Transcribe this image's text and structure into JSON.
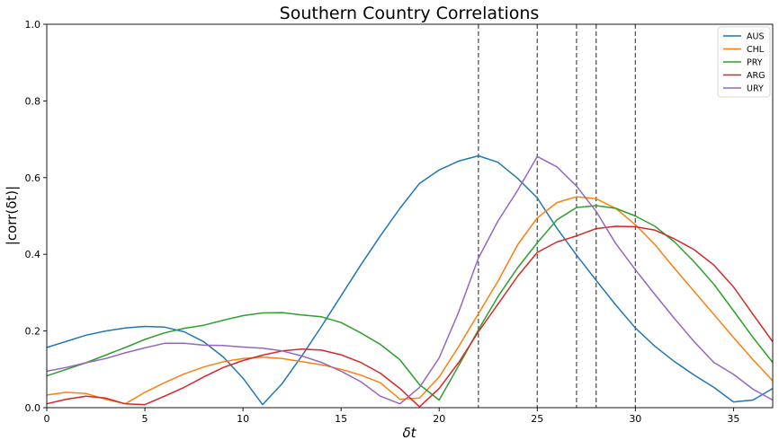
{
  "chart_data": {
    "type": "line",
    "title": "Southern Country Correlations",
    "xlabel": "δt",
    "ylabel": "|corr(δt)|",
    "xlim": [
      0,
      37
    ],
    "ylim": [
      0,
      1.0
    ],
    "xticks": [
      0,
      5,
      10,
      15,
      20,
      25,
      30,
      35
    ],
    "yticks": [
      0.0,
      0.2,
      0.4,
      0.6,
      0.8,
      1.0
    ],
    "x": [
      0,
      1,
      2,
      3,
      4,
      5,
      6,
      7,
      8,
      9,
      10,
      11,
      12,
      13,
      14,
      15,
      16,
      17,
      18,
      19,
      20,
      21,
      22,
      23,
      24,
      25,
      26,
      27,
      28,
      29,
      30,
      31,
      32,
      33,
      34,
      35,
      36,
      37
    ],
    "vlines": [
      22,
      25,
      27,
      28,
      30
    ],
    "legend_position": "top-right",
    "grid": false,
    "series": [
      {
        "name": "AUS",
        "color": "#1f77b4",
        "values": [
          0.157,
          0.173,
          0.189,
          0.2,
          0.208,
          0.212,
          0.21,
          0.198,
          0.172,
          0.132,
          0.077,
          0.008,
          0.063,
          0.135,
          0.212,
          0.292,
          0.372,
          0.448,
          0.52,
          0.585,
          0.62,
          0.643,
          0.657,
          0.64,
          0.598,
          0.547,
          0.468,
          0.398,
          0.332,
          0.268,
          0.208,
          0.16,
          0.12,
          0.085,
          0.053,
          0.015,
          0.02,
          0.05
        ]
      },
      {
        "name": "CHL",
        "color": "#ff7f0e",
        "values": [
          0.033,
          0.04,
          0.037,
          0.022,
          0.01,
          0.04,
          0.065,
          0.088,
          0.106,
          0.12,
          0.128,
          0.132,
          0.128,
          0.12,
          0.112,
          0.1,
          0.085,
          0.065,
          0.022,
          0.025,
          0.08,
          0.16,
          0.245,
          0.33,
          0.425,
          0.495,
          0.535,
          0.55,
          0.545,
          0.52,
          0.477,
          0.425,
          0.363,
          0.303,
          0.243,
          0.183,
          0.125,
          0.07
        ]
      },
      {
        "name": "PRY",
        "color": "#2ca02c",
        "values": [
          0.083,
          0.1,
          0.117,
          0.137,
          0.157,
          0.178,
          0.195,
          0.207,
          0.215,
          0.228,
          0.24,
          0.247,
          0.248,
          0.242,
          0.237,
          0.222,
          0.195,
          0.165,
          0.125,
          0.06,
          0.02,
          0.11,
          0.203,
          0.29,
          0.365,
          0.43,
          0.49,
          0.522,
          0.527,
          0.52,
          0.5,
          0.473,
          0.432,
          0.38,
          0.322,
          0.253,
          0.183,
          0.118
        ]
      },
      {
        "name": "ARG",
        "color": "#d62728",
        "values": [
          0.01,
          0.022,
          0.03,
          0.025,
          0.01,
          0.008,
          0.03,
          0.053,
          0.08,
          0.105,
          0.123,
          0.137,
          0.148,
          0.153,
          0.15,
          0.138,
          0.118,
          0.09,
          0.05,
          0.002,
          0.05,
          0.118,
          0.198,
          0.27,
          0.343,
          0.405,
          0.432,
          0.448,
          0.467,
          0.473,
          0.472,
          0.463,
          0.44,
          0.412,
          0.372,
          0.315,
          0.243,
          0.172
        ]
      },
      {
        "name": "URY",
        "color": "#9467bd",
        "values": [
          0.095,
          0.105,
          0.117,
          0.128,
          0.143,
          0.156,
          0.168,
          0.168,
          0.163,
          0.162,
          0.158,
          0.155,
          0.148,
          0.135,
          0.118,
          0.095,
          0.068,
          0.03,
          0.01,
          0.053,
          0.13,
          0.25,
          0.39,
          0.487,
          0.567,
          0.655,
          0.628,
          0.578,
          0.512,
          0.428,
          0.36,
          0.295,
          0.232,
          0.172,
          0.118,
          0.087,
          0.048,
          0.02
        ]
      }
    ]
  }
}
